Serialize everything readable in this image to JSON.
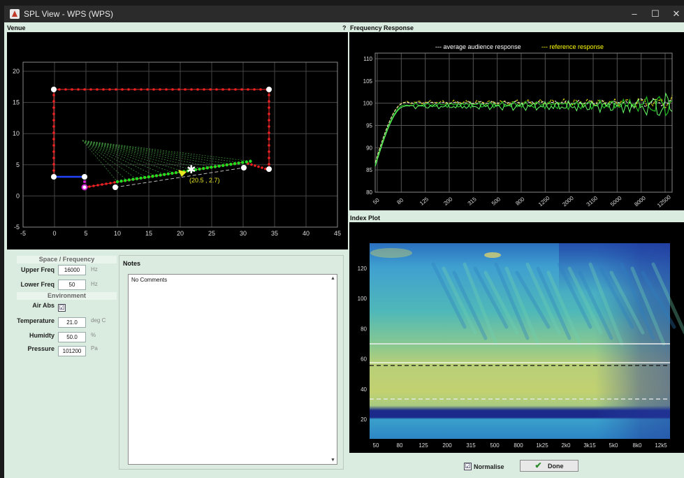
{
  "window": {
    "title": "SPL View - WPS (WPS)",
    "controls": {
      "minimize": "–",
      "maximize": "☐",
      "close": "✕"
    }
  },
  "venue": {
    "title": "Venue",
    "help": "?",
    "x_ticks": [
      "-5",
      "0",
      "5",
      "10",
      "15",
      "20",
      "25",
      "30",
      "35",
      "40",
      "45"
    ],
    "y_ticks": [
      "20",
      "15",
      "10",
      "5",
      "0",
      "-5"
    ],
    "cursor_label": "(20.5 , 2.7)"
  },
  "frequency_response": {
    "title": "Frequency Response",
    "legend": {
      "average": "--- average audience response",
      "reference": "--- reference response"
    },
    "y_ticks": [
      "110",
      "105",
      "100",
      "95",
      "90",
      "85",
      "80"
    ],
    "x_ticks": [
      "50",
      "80",
      "125",
      "200",
      "315",
      "500",
      "800",
      "1250",
      "2000",
      "3150",
      "5000",
      "8000",
      "12500"
    ],
    "colors": {
      "average": "#ffffff",
      "reference": "#ffff00",
      "series_a": "#22bb22",
      "series_b": "#66ff66"
    }
  },
  "index_plot": {
    "title": "Index Plot",
    "y_ticks": [
      "120",
      "100",
      "80",
      "60",
      "40",
      "20"
    ],
    "x_ticks": [
      "50",
      "80",
      "125",
      "200",
      "315",
      "500",
      "800",
      "1k25",
      "2k0",
      "3k15",
      "5k0",
      "8k0",
      "12k5"
    ]
  },
  "settings": {
    "space_frequency_header": "Space / Frequency",
    "upper_freq": {
      "label": "Upper Freq",
      "value": "16000",
      "unit": "Hz"
    },
    "lower_freq": {
      "label": "Lower Freq",
      "value": "50",
      "unit": "Hz"
    },
    "environment_header": "Environment",
    "air_abs": {
      "label": "Air Abs",
      "checked": "☑"
    },
    "temperature": {
      "label": "Temperature",
      "value": "21.0",
      "unit": "deg C"
    },
    "humidity": {
      "label": "Humidty",
      "value": "50.0",
      "unit": "%"
    },
    "pressure": {
      "label": "Pressure",
      "value": "101200",
      "unit": "Pa"
    }
  },
  "notes": {
    "title": "Notes",
    "text": "No Comments",
    "scroll_up": "▲",
    "scroll_down": "▼"
  },
  "footer": {
    "normalise_label": "Normalise",
    "normalise_check": "☑",
    "done_label": "Done",
    "done_icon": "✔"
  }
}
